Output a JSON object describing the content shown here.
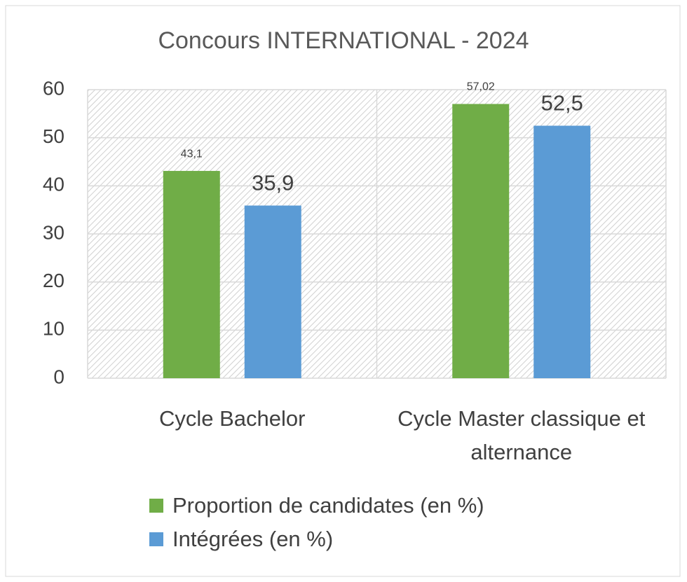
{
  "chart_data": {
    "type": "bar",
    "title": "Concours INTERNATIONAL - 2024",
    "categories": [
      "Cycle Bachelor",
      "Cycle Master classique et alternance"
    ],
    "series": [
      {
        "name": "Proportion de candidates (en %)",
        "color": "#70ad47",
        "values": [
          43.1,
          57.02
        ],
        "value_labels": [
          "43,1",
          "57,02"
        ]
      },
      {
        "name": "Intégrées (en %)",
        "color": "#5b9bd5",
        "values": [
          35.9,
          52.5
        ],
        "value_labels": [
          "35,9",
          "52,5"
        ]
      }
    ],
    "ylim": [
      0,
      60
    ],
    "yticks": [
      0,
      10,
      20,
      30,
      40,
      50,
      60
    ],
    "grid": true,
    "legend": "bottom"
  }
}
